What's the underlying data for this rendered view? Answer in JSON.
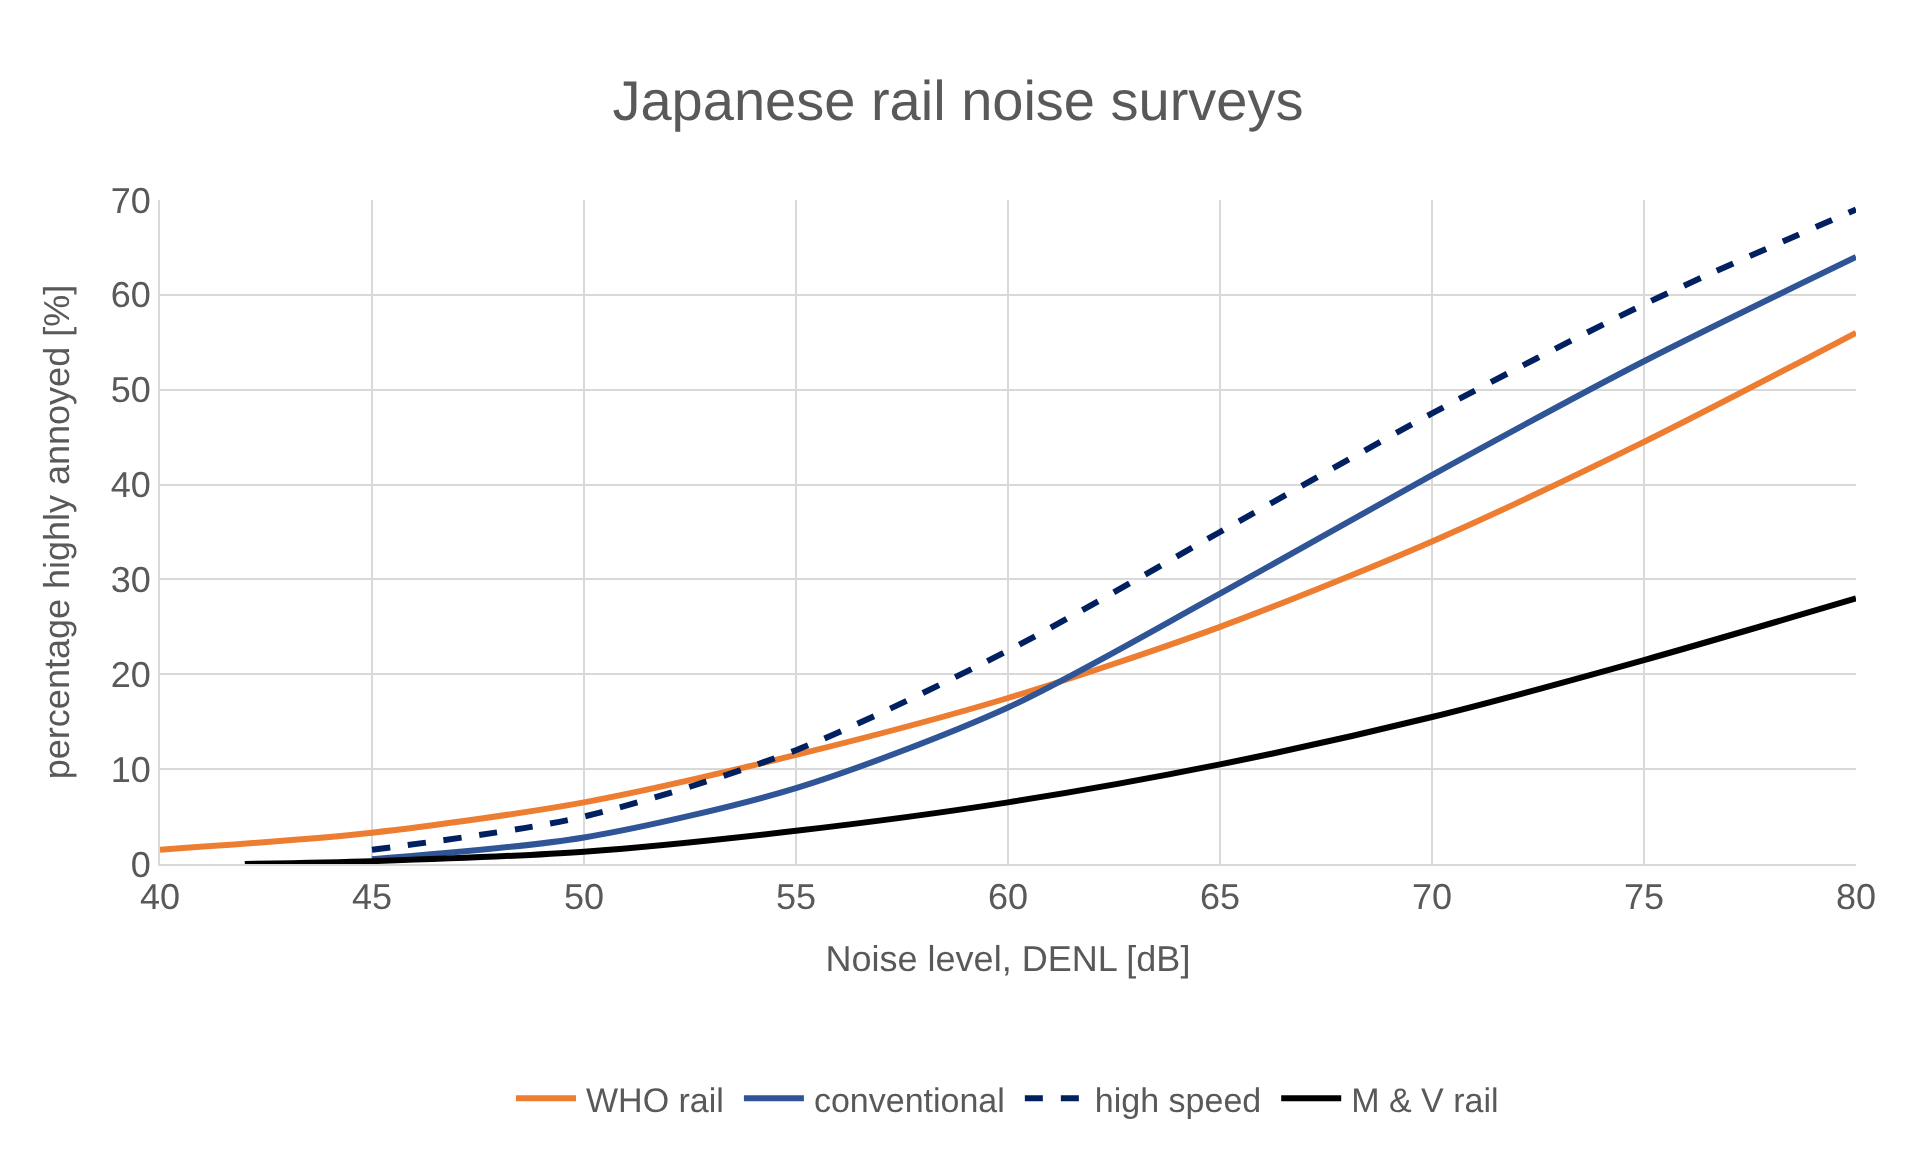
{
  "chart_data": {
    "type": "line",
    "title": "Japanese rail noise surveys",
    "xlabel": "Noise level, DENL [dB]",
    "ylabel": "percentage highly annoyed [%]",
    "xlim": [
      40,
      80
    ],
    "xticks": [
      40,
      45,
      50,
      55,
      60,
      65,
      70,
      75,
      80
    ],
    "ylim": [
      0,
      70
    ],
    "yticks": [
      0,
      10,
      20,
      30,
      40,
      50,
      60,
      70
    ],
    "grid": true,
    "legend": "bottom",
    "marker": "none",
    "series": [
      {
        "name": "WHO rail",
        "color": "#ed7d31",
        "line_style": "solid",
        "x": [
          40,
          45,
          50,
          55,
          60,
          65,
          70,
          75,
          80
        ],
        "values": [
          1.5,
          3.3,
          6.5,
          11.5,
          17.5,
          25,
          34,
          44.5,
          56
        ]
      },
      {
        "name": "conventional",
        "color": "#2f5597",
        "line_style": "solid",
        "x": [
          45,
          50,
          55,
          60,
          65,
          70,
          75,
          80
        ],
        "values": [
          0.5,
          2.8,
          8,
          16.5,
          28.5,
          41,
          53,
          64
        ]
      },
      {
        "name": "high speed",
        "color": "#002060",
        "line_style": "dashed",
        "x": [
          45,
          50,
          55,
          60,
          65,
          70,
          75,
          80
        ],
        "values": [
          1.5,
          5,
          12,
          22.5,
          35,
          47.5,
          59,
          69
        ]
      },
      {
        "name": "M & V rail",
        "color": "#000000",
        "line_style": "solid",
        "x": [
          42,
          45,
          50,
          55,
          60,
          65,
          70,
          75,
          80
        ],
        "values": [
          0,
          0.3,
          1.3,
          3.5,
          6.5,
          10.5,
          15.5,
          21.5,
          28
        ]
      }
    ]
  }
}
